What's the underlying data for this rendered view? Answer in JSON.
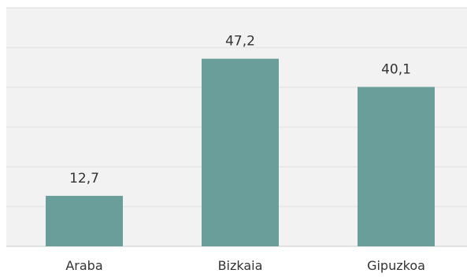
{
  "chart_data": {
    "type": "bar",
    "categories": [
      "Araba",
      "Bizkaia",
      "Gipuzkoa"
    ],
    "values": [
      12.7,
      47.2,
      40.1
    ],
    "value_labels": [
      "12,7",
      "47,2",
      "40,1"
    ],
    "title": "",
    "xlabel": "",
    "ylabel": "",
    "ylim": [
      0,
      60
    ],
    "grid": true,
    "legend": "none",
    "bar_color": "#6a9e9a",
    "grid_color": "#e6e6e6"
  }
}
